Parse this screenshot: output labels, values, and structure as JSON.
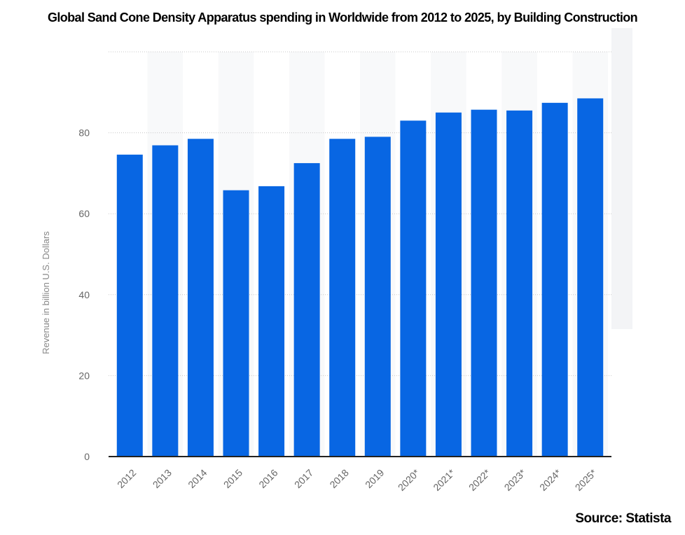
{
  "chart_data": {
    "type": "bar",
    "title": "Global Sand Cone Density Apparatus spending in Worldwide from 2012 to 2025, by Building Construction",
    "xlabel": "",
    "ylabel": "Revenue in billion U.S. Dollars",
    "ylim": [
      0,
      100
    ],
    "yticks": [
      0,
      20,
      40,
      60,
      80
    ],
    "grid": true,
    "categories": [
      "2012",
      "2013",
      "2014",
      "2015",
      "2016",
      "2017",
      "2018",
      "2019",
      "2020*",
      "2021*",
      "2022*",
      "2023*",
      "2024*",
      "2025*"
    ],
    "values": [
      74.6,
      76.9,
      78.5,
      65.8,
      66.8,
      72.5,
      78.5,
      79.0,
      83.0,
      85.0,
      85.7,
      85.5,
      87.4,
      88.5
    ],
    "bar_color": "#0866e3"
  },
  "source": "Source: Statista"
}
